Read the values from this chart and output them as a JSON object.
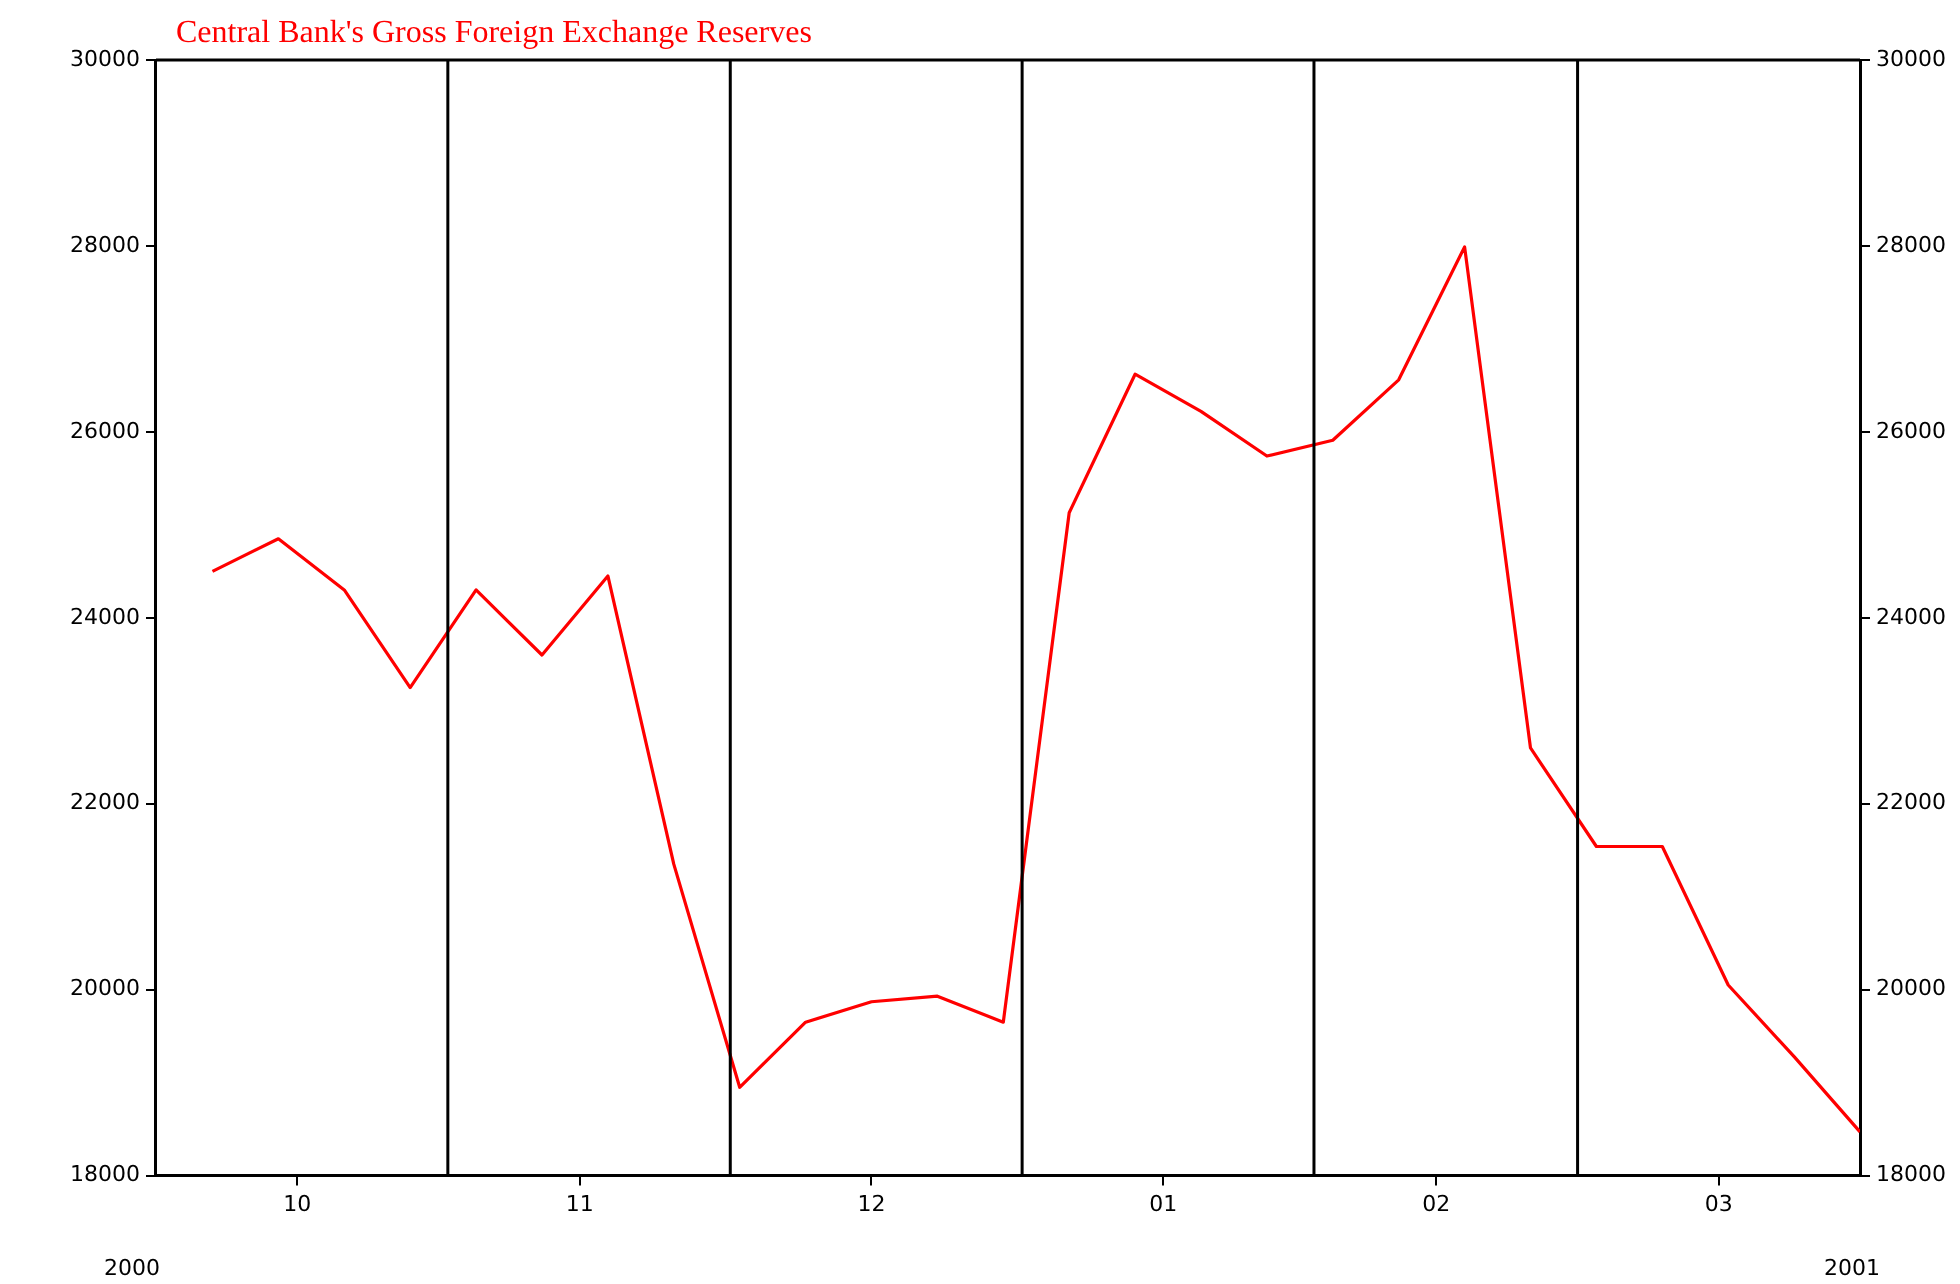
{
  "chart_data": {
    "type": "line",
    "title": "Central Bank's Gross Foreign Exchange Reserves",
    "x": [
      "2000-10-07",
      "2000-10-14",
      "2000-10-21",
      "2000-10-28",
      "2000-11-04",
      "2000-11-11",
      "2000-11-18",
      "2000-11-25",
      "2000-12-02",
      "2000-12-09",
      "2000-12-16",
      "2000-12-23",
      "2000-12-30",
      "2001-01-06",
      "2001-01-13",
      "2001-01-20",
      "2001-01-27",
      "2001-02-03",
      "2001-02-10",
      "2001-02-17",
      "2001-02-24",
      "2001-03-03",
      "2001-03-10",
      "2001-03-17",
      "2001-03-24",
      "2001-03-31"
    ],
    "series": [
      {
        "color": "#ff0000",
        "values": [
          24500,
          24850,
          24300,
          23250,
          24300,
          23600,
          24450,
          21350,
          18950,
          19650,
          19870,
          19930,
          19650,
          25130,
          26620,
          26220,
          25740,
          25910,
          26560,
          27990,
          22600,
          21540,
          21540,
          20050,
          19280,
          18470
        ]
      }
    ],
    "xlim": [
      "2000-10-01",
      "2001-03-31"
    ],
    "xticks": [
      {
        "value": "2000-10-16",
        "label": "10"
      },
      {
        "value": "2000-11-15",
        "label": "11"
      },
      {
        "value": "2000-12-16",
        "label": "12"
      },
      {
        "value": "2001-01-16",
        "label": "01"
      },
      {
        "value": "2001-02-14",
        "label": "02"
      },
      {
        "value": "2001-03-16",
        "label": "03"
      }
    ],
    "ylim": [
      18000,
      30000
    ],
    "yticks": [
      18000,
      20000,
      22000,
      24000,
      26000,
      28000,
      30000
    ],
    "y2lim": [
      18000,
      30000
    ],
    "y2ticks": [
      18000,
      20000,
      22000,
      24000,
      26000,
      28000,
      30000
    ],
    "ref_lines": [
      {
        "axis": "x",
        "value": "2000-11-01",
        "color": "#000000"
      },
      {
        "axis": "x",
        "value": "2000-12-01",
        "color": "#000000"
      },
      {
        "axis": "x",
        "value": "2001-01-01",
        "color": "#000000"
      },
      {
        "axis": "x",
        "value": "2001-02-01",
        "color": "#000000"
      },
      {
        "axis": "x",
        "value": "2001-03-01",
        "color": "#000000"
      }
    ],
    "annotations": [
      "2000",
      "2001"
    ],
    "grid": false,
    "legend": false,
    "marker": "none",
    "line_style": "solid"
  }
}
